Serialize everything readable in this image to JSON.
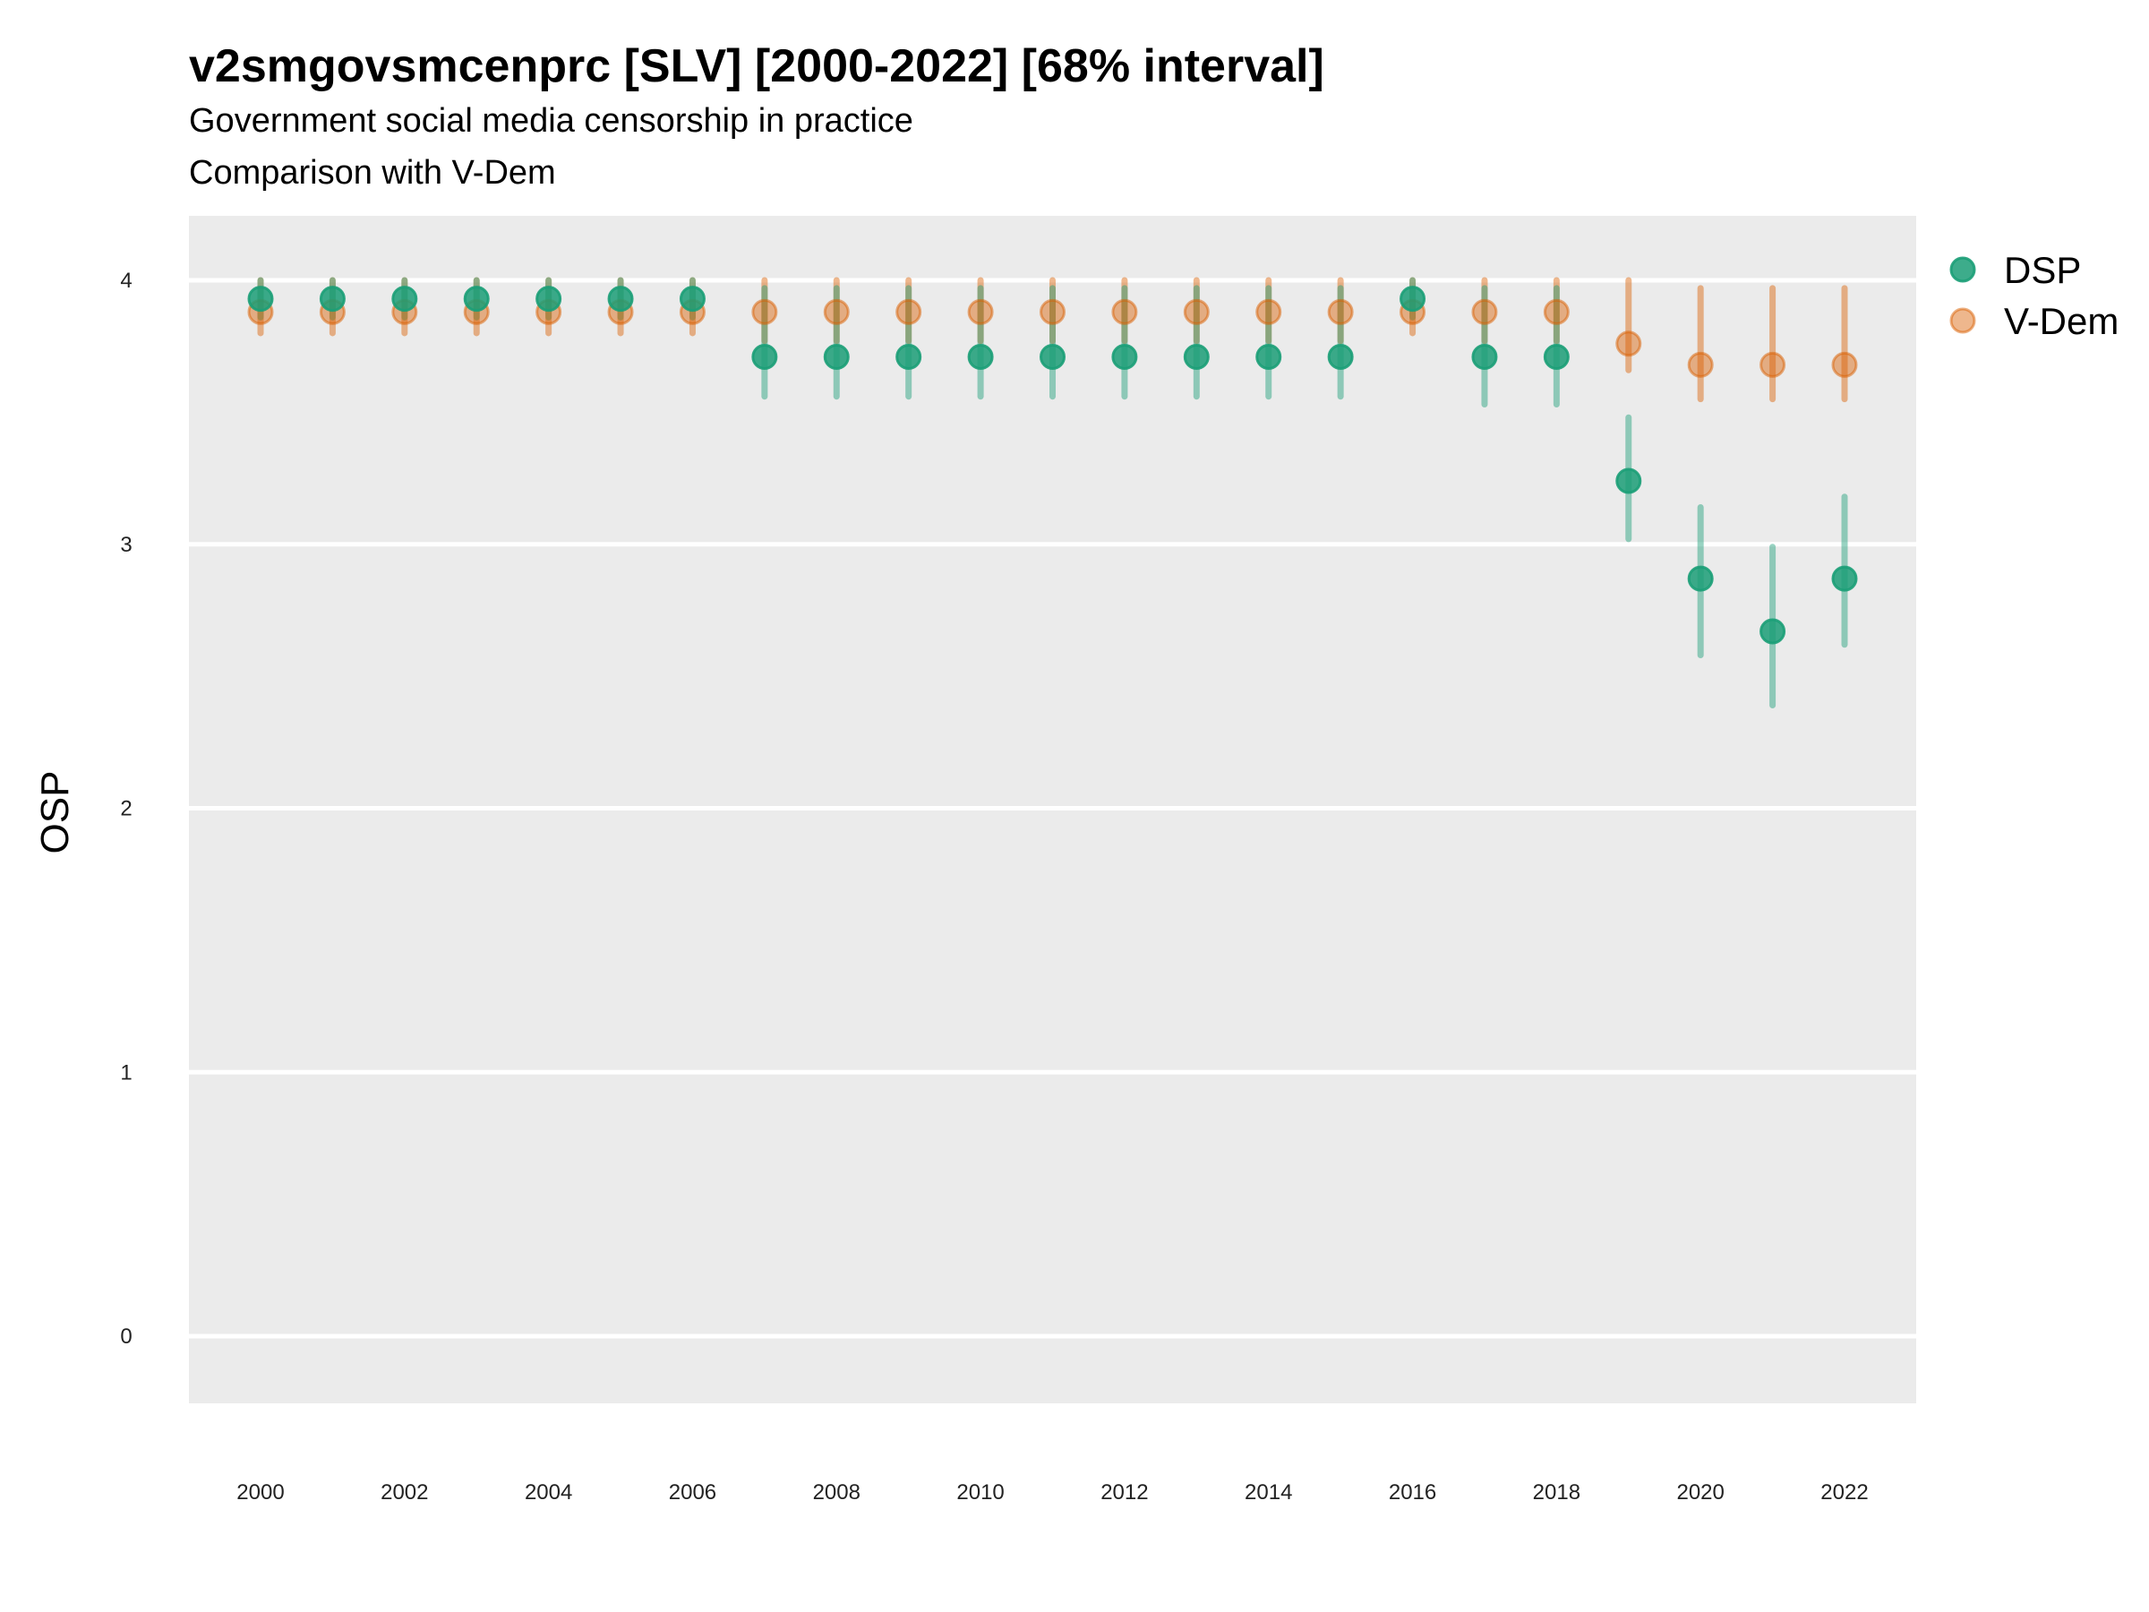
{
  "chart_data": {
    "type": "scatter",
    "title": "v2smgovsmcenprc [SLV] [2000-2022] [68% interval]",
    "subtitle": [
      "Government social media censorship in practice",
      "Comparison with V-Dem"
    ],
    "xlabel": "",
    "ylabel": "OSP",
    "xlim": [
      1999.05,
      2023.0
    ],
    "ylim": [
      -0.25,
      4.25
    ],
    "x_ticks": [
      2000,
      2002,
      2004,
      2006,
      2008,
      2010,
      2012,
      2014,
      2016,
      2018,
      2020,
      2022
    ],
    "y_ticks": [
      0,
      1,
      2,
      3,
      4
    ],
    "grid": true,
    "legend_position": "right",
    "x": [
      2000,
      2001,
      2002,
      2003,
      2004,
      2005,
      2006,
      2007,
      2008,
      2009,
      2010,
      2011,
      2012,
      2013,
      2014,
      2015,
      2016,
      2017,
      2018,
      2019,
      2020,
      2021,
      2022
    ],
    "series": [
      {
        "name": "DSP",
        "color": "#1b9e77",
        "values": [
          3.93,
          3.93,
          3.93,
          3.93,
          3.93,
          3.93,
          3.93,
          3.71,
          3.71,
          3.71,
          3.71,
          3.71,
          3.71,
          3.71,
          3.71,
          3.71,
          3.93,
          3.71,
          3.71,
          3.24,
          2.87,
          2.67,
          2.87
        ],
        "lower": [
          3.86,
          3.86,
          3.86,
          3.86,
          3.86,
          3.86,
          3.86,
          3.56,
          3.56,
          3.56,
          3.56,
          3.56,
          3.56,
          3.56,
          3.56,
          3.56,
          3.86,
          3.53,
          3.53,
          3.02,
          2.58,
          2.39,
          2.62
        ],
        "upper": [
          4.0,
          4.0,
          4.0,
          4.0,
          4.0,
          4.0,
          4.0,
          3.97,
          3.97,
          3.97,
          3.97,
          3.97,
          3.97,
          3.97,
          3.97,
          3.97,
          4.0,
          3.97,
          3.97,
          3.48,
          3.14,
          2.99,
          3.18
        ]
      },
      {
        "name": "V-Dem",
        "color": "#d95f02",
        "values": [
          3.88,
          3.88,
          3.88,
          3.88,
          3.88,
          3.88,
          3.88,
          3.88,
          3.88,
          3.88,
          3.88,
          3.88,
          3.88,
          3.88,
          3.88,
          3.88,
          3.88,
          3.88,
          3.88,
          3.76,
          3.68,
          3.68,
          3.68
        ],
        "lower": [
          3.8,
          3.8,
          3.8,
          3.8,
          3.8,
          3.8,
          3.8,
          3.77,
          3.77,
          3.77,
          3.77,
          3.77,
          3.77,
          3.77,
          3.77,
          3.77,
          3.8,
          3.77,
          3.77,
          3.66,
          3.55,
          3.55,
          3.55
        ],
        "upper": [
          4.0,
          4.0,
          4.0,
          4.0,
          4.0,
          4.0,
          4.0,
          4.0,
          4.0,
          4.0,
          4.0,
          4.0,
          4.0,
          4.0,
          4.0,
          4.0,
          4.0,
          4.0,
          4.0,
          4.0,
          3.97,
          3.97,
          3.97
        ]
      }
    ]
  }
}
